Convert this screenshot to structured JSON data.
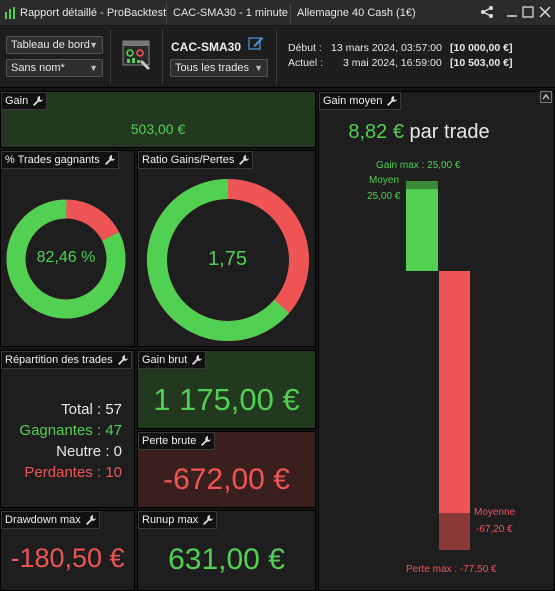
{
  "titlebar": {
    "title": "Rapport détaillé - ProBacktest",
    "instrument_period": "CAC-SMA30 - 1 minute",
    "market": "Allemagne 40 Cash (1€)"
  },
  "toolbar": {
    "view_select": "Tableau de bord",
    "name_select": "Sans nom*",
    "strategy_name": "CAC-SMA30",
    "trades_filter": "Tous les trades",
    "start_label": "Début :",
    "start_date": "13 mars 2024, 03:57:00",
    "start_capital": "[10 000,00 €]",
    "current_label": "Actuel :",
    "current_date": "3 mai 2024, 16:59:00",
    "current_capital": "[10 503,00 €]"
  },
  "panels": {
    "gain": {
      "title": "Gain",
      "value": "503,00 €"
    },
    "pct_winning": {
      "title": "% Trades gagnants",
      "value": "82,46 %",
      "fraction": 0.8246
    },
    "ratio": {
      "title": "Ratio Gains/Pertes",
      "value": "1,75",
      "fraction": 0.6364
    },
    "avg_gain": {
      "title": "Gain moyen",
      "value": "8,82 €",
      "suffix": "par trade",
      "max_gain_label": "Gain max : 25,00 €",
      "avg_label": "Moyen",
      "avg_value": "25,00 €",
      "loss_avg_label": "Moyenne",
      "loss_avg_value": "-67,20 €",
      "max_loss_label": "Perte max : -77,50 €",
      "gain_max": 25.0,
      "gain_avg": 25.0,
      "loss_avg": -67.2,
      "loss_max": -77.5
    },
    "distribution": {
      "title": "Répartition des trades",
      "total_label": "Total :",
      "total": "57",
      "winners_label": "Gagnantes :",
      "winners": "47",
      "neutral_label": "Neutre :",
      "neutral": "0",
      "losers_label": "Perdantes :",
      "losers": "10"
    },
    "gross_gain": {
      "title": "Gain brut",
      "value": "1 175,00 €"
    },
    "gross_loss": {
      "title": "Perte brute",
      "value": "-672,00 €"
    },
    "drawdown": {
      "title": "Drawdown max",
      "value": "-180,50 €"
    },
    "runup": {
      "title": "Runup max",
      "value": "631,00 €"
    }
  },
  "colors": {
    "win": "#52d052",
    "loss": "#f05555",
    "win_bg": "#22381f",
    "loss_bg": "#3a1f1f"
  },
  "icons": {
    "logo": "chart-logo-icon",
    "share": "share-icon",
    "minimize": "minimize-icon",
    "maximize": "maximize-icon",
    "close": "close-icon",
    "edit": "edit-icon",
    "wrench": "wrench-icon",
    "collapse": "collapse-icon"
  }
}
